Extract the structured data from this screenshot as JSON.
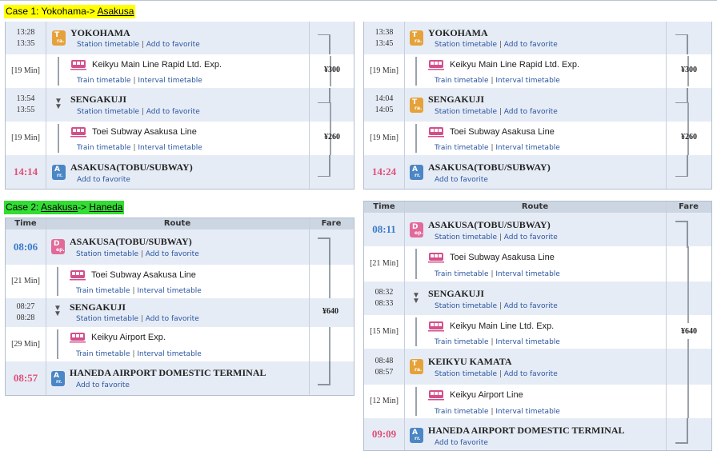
{
  "case1": {
    "prefix": "Case 1: ",
    "from": "Yokohama",
    "arrow": "-> ",
    "to": "Asakusa",
    "highlight": "#ffff00"
  },
  "case2": {
    "prefix": "Case 2: ",
    "from": "Asakusa",
    "arrow": "-> ",
    "to": "Haneda",
    "highlight": "#33dd33"
  },
  "header": {
    "time": "Time",
    "route": "Route",
    "fare": "Fare"
  },
  "links": {
    "station_timetable": "Station timetable",
    "add_favorite": "Add to favorite",
    "train_timetable": "Train timetable",
    "interval_timetable": "Interval timetable",
    "sep": " | "
  },
  "badges": {
    "transfer": [
      "T",
      "ra."
    ],
    "departure": [
      "D",
      "ep."
    ],
    "arrival": [
      "A",
      "rr."
    ]
  },
  "panel1": {
    "s1": {
      "time1": "13:28",
      "time2": "13:35",
      "name": "YOKOHAMA"
    },
    "l1": {
      "duration": "[19 Min]",
      "line": "Keikyu Main Line Rapid Ltd. Exp.",
      "fare": "¥300"
    },
    "s2": {
      "time1": "13:54",
      "time2": "13:55",
      "name": "SENGAKUJI"
    },
    "l2": {
      "duration": "[19 Min]",
      "line": "Toei Subway Asakusa Line",
      "fare": "¥260"
    },
    "s3": {
      "time": "14:14",
      "name": "ASAKUSA(TOBU/SUBWAY)"
    }
  },
  "panel2": {
    "s1": {
      "time1": "13:38",
      "time2": "13:45",
      "name": "YOKOHAMA"
    },
    "l1": {
      "duration": "[19 Min]",
      "line": "Keikyu Main Line Rapid Ltd. Exp.",
      "fare": "¥300"
    },
    "s2": {
      "time1": "14:04",
      "time2": "14:05",
      "name": "SENGAKUJI"
    },
    "l2": {
      "duration": "[19 Min]",
      "line": "Toei Subway Asakusa Line",
      "fare": "¥260"
    },
    "s3": {
      "time": "14:24",
      "name": "ASAKUSA(TOBU/SUBWAY)"
    }
  },
  "panel3": {
    "s1": {
      "time": "08:06",
      "name": "ASAKUSA(TOBU/SUBWAY)"
    },
    "l1": {
      "duration": "[21 Min]",
      "line": "Toei Subway Asakusa Line"
    },
    "s2": {
      "time1": "08:27",
      "time2": "08:28",
      "name": "SENGAKUJI"
    },
    "l2": {
      "duration": "[29 Min]",
      "line": "Keikyu Airport Exp."
    },
    "s3": {
      "time": "08:57",
      "name": "HANEDA AIRPORT DOMESTIC TERMINAL"
    },
    "fare": "¥640"
  },
  "panel4": {
    "s1": {
      "time": "08:11",
      "name": "ASAKUSA(TOBU/SUBWAY)"
    },
    "l1": {
      "duration": "[21 Min]",
      "line": "Toei Subway Asakusa Line"
    },
    "s2": {
      "time1": "08:32",
      "time2": "08:33",
      "name": "SENGAKUJI"
    },
    "l2": {
      "duration": "[15 Min]",
      "line": "Keikyu Main Line Ltd. Exp."
    },
    "s3": {
      "time1": "08:48",
      "time2": "08:57",
      "name": "KEIKYU KAMATA"
    },
    "l3": {
      "duration": "[12 Min]",
      "line": "Keikyu Airport Line"
    },
    "s4": {
      "time": "09:09",
      "name": "HANEDA AIRPORT DOMESTIC TERMINAL"
    },
    "fare": "¥640"
  }
}
